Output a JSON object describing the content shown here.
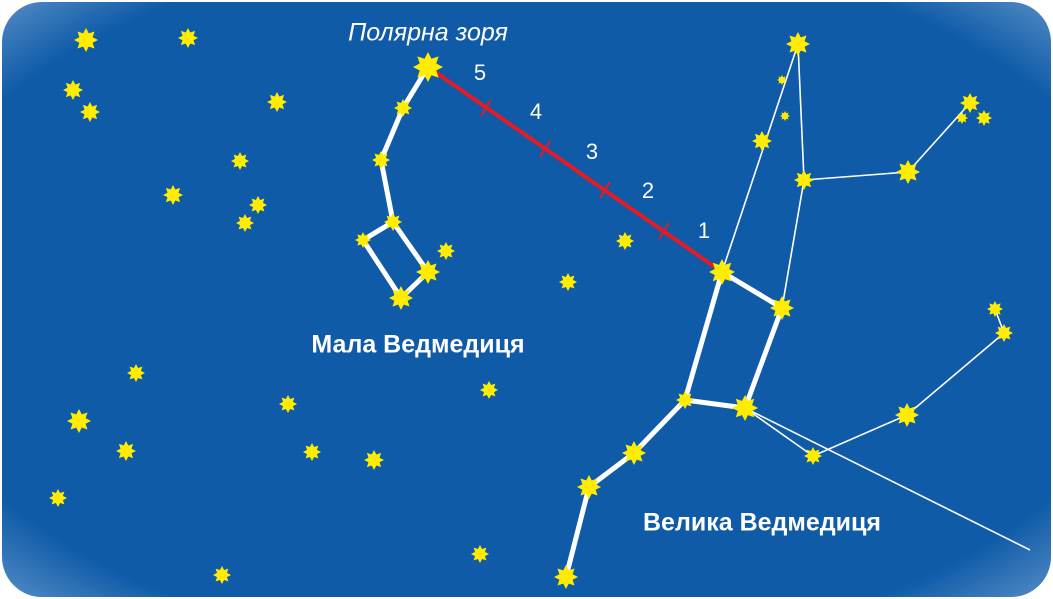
{
  "title": "Полярна зоря",
  "constellations": [
    {
      "label": "Мала Ведмедиця"
    },
    {
      "label": "Велика Ведмедиця"
    }
  ],
  "scale_labels": [
    "5",
    "4",
    "3",
    "2",
    "1"
  ]
}
